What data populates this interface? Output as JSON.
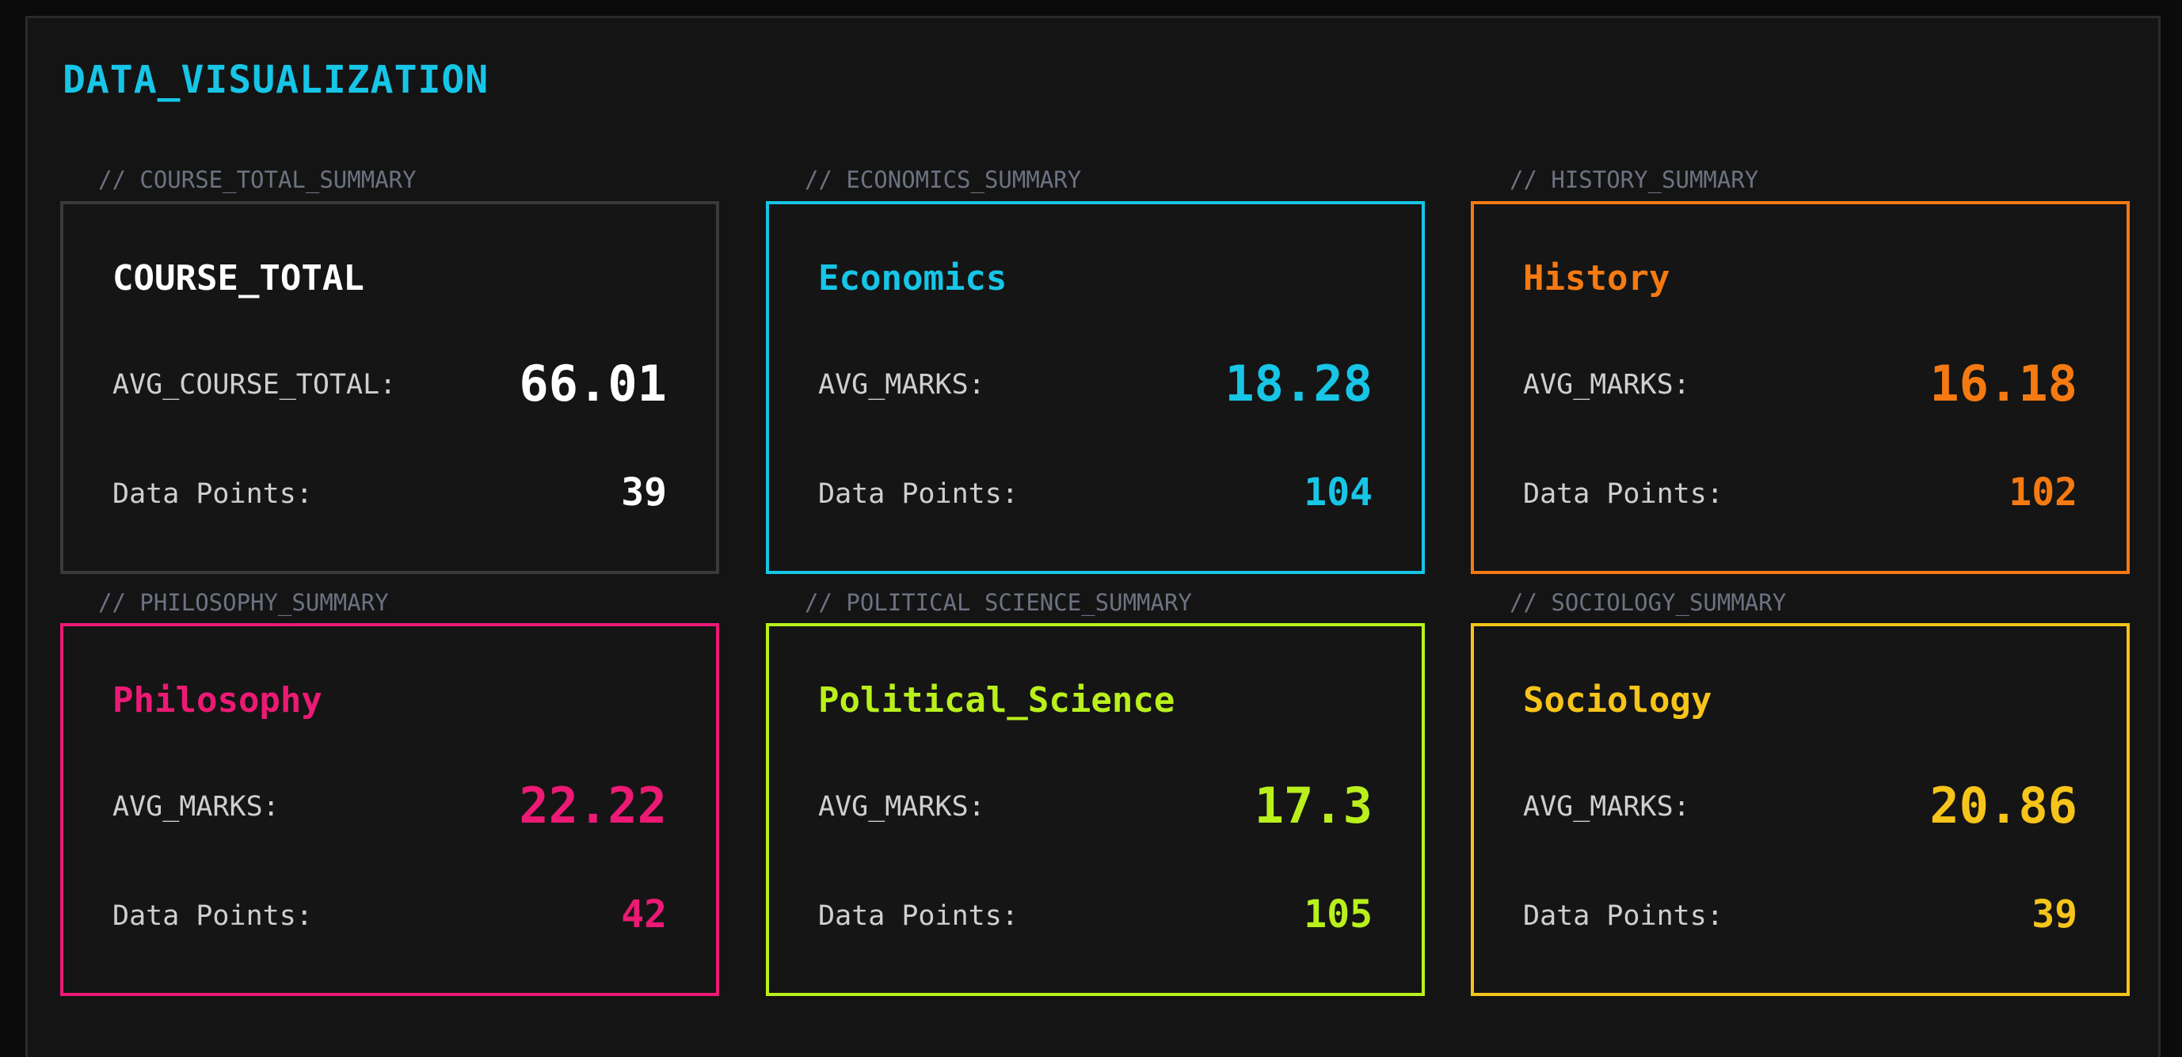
{
  "title": "DATA_VISUALIZATION",
  "colors": {
    "neutral": "#ffffff",
    "economics": "#17c5e6",
    "history": "#f57a12",
    "philosophy": "#ec1a74",
    "political_science": "#b9f01c",
    "sociology": "#f6c41a"
  },
  "cards": [
    {
      "label": "// COURSE_TOTAL_SUMMARY",
      "name": "COURSE_TOTAL",
      "avg_label": "AVG_COURSE_TOTAL:",
      "avg_value": "66.01",
      "dp_label": "Data Points:",
      "dp_value": "39"
    },
    {
      "label": "// ECONOMICS_SUMMARY",
      "name": "Economics",
      "avg_label": "AVG_MARKS:",
      "avg_value": "18.28",
      "dp_label": "Data Points:",
      "dp_value": "104"
    },
    {
      "label": "// HISTORY_SUMMARY",
      "name": "History",
      "avg_label": "AVG_MARKS:",
      "avg_value": "16.18",
      "dp_label": "Data Points:",
      "dp_value": "102"
    },
    {
      "label": "// PHILOSOPHY_SUMMARY",
      "name": "Philosophy",
      "avg_label": "AVG_MARKS:",
      "avg_value": "22.22",
      "dp_label": "Data Points:",
      "dp_value": "42"
    },
    {
      "label": "// POLITICAL SCIENCE_SUMMARY",
      "name": "Political_Science",
      "avg_label": "AVG_MARKS:",
      "avg_value": "17.3",
      "dp_label": "Data Points:",
      "dp_value": "105"
    },
    {
      "label": "// SOCIOLOGY_SUMMARY",
      "name": "Sociology",
      "avg_label": "AVG_MARKS:",
      "avg_value": "20.86",
      "dp_label": "Data Points:",
      "dp_value": "39"
    }
  ]
}
